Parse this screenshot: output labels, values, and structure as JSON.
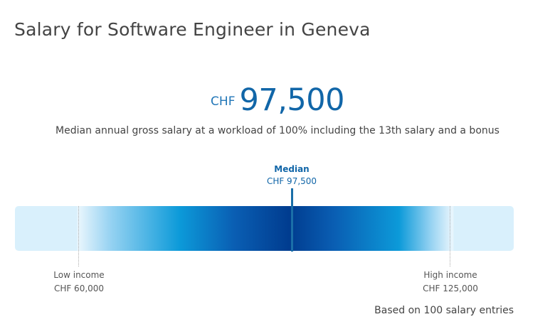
{
  "header": {
    "title": "Salary for Software Engineer in Geneva"
  },
  "median_salary": {
    "currency": "CHF",
    "amount": "97,500",
    "description": "Median annual gross salary at a workload of 100% including the 13th salary and a bonus"
  },
  "distribution": {
    "median_label": "Median",
    "median_value": "CHF 97,500",
    "low_label": "Low income",
    "low_value": "CHF 60,000",
    "high_label": "High income",
    "high_value": "CHF 125,000",
    "footnote": "Based on 100 salary entries"
  },
  "colors": {
    "accent": "#1166a8",
    "bar_light": "#d9f0fc",
    "bar_mid": "#0c9ad9",
    "bar_dark": "#003c8f"
  }
}
